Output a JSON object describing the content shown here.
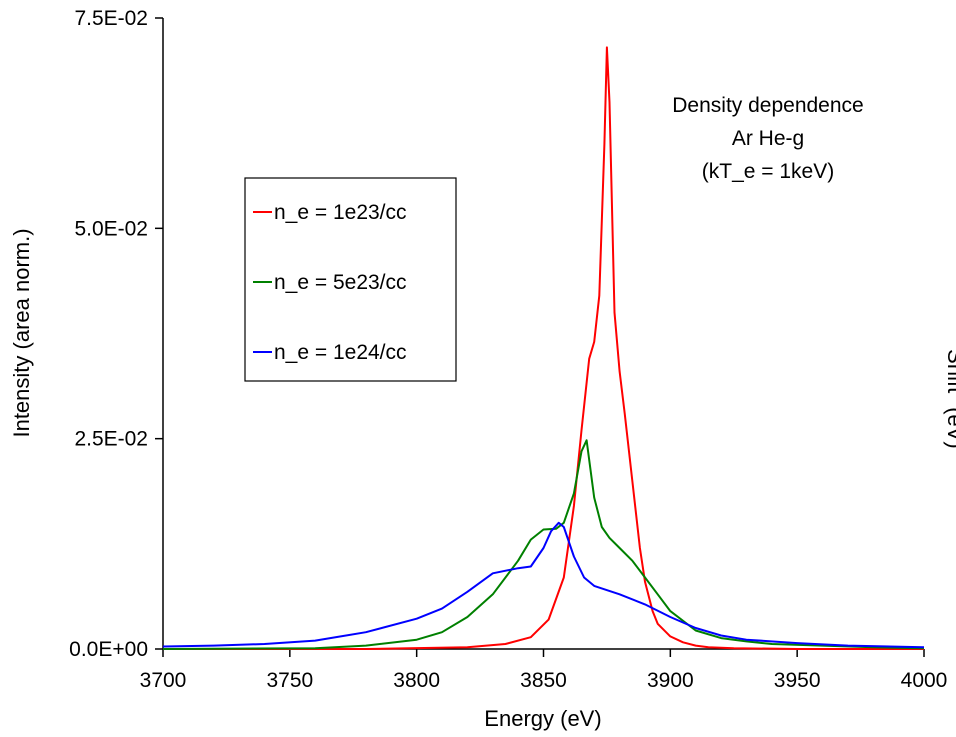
{
  "chart_data": {
    "type": "line",
    "xlabel": "Energy (eV)",
    "ylabel": "Intensity (area norm.)",
    "secondary_ylabel": "\"Shift\" (eV)",
    "xlim": [
      3700,
      4000
    ],
    "ylim": [
      0,
      0.075
    ],
    "x_ticks": [
      3700,
      3750,
      3800,
      3850,
      3900,
      3950,
      4000
    ],
    "x_tick_labels": [
      "3700",
      "3750",
      "3800",
      "3850",
      "3900",
      "3950",
      "4000"
    ],
    "y_ticks": [
      0,
      0.025,
      0.05,
      0.075
    ],
    "y_tick_labels": [
      "0.0E+00",
      "2.5E-02",
      "5.0E-02",
      "7.5E-02"
    ],
    "grid": false,
    "legend_position": "left",
    "annotation": [
      "Density dependence",
      "Ar He-g",
      "(kT_e = 1keV)"
    ],
    "series": [
      {
        "name": "n_e = 1e23/cc",
        "color": "#ff0000",
        "x": [
          3700,
          3780,
          3820,
          3835,
          3845,
          3852,
          3858,
          3862,
          3865,
          3868,
          3870,
          3872,
          3874,
          3875,
          3876,
          3878,
          3880,
          3882,
          3885,
          3888,
          3890,
          3893,
          3895,
          3900,
          3905,
          3910,
          3915,
          3925,
          3950,
          4000
        ],
        "y": [
          0.0,
          0.0,
          0.0002,
          0.0006,
          0.0014,
          0.0035,
          0.0085,
          0.017,
          0.026,
          0.0345,
          0.0365,
          0.042,
          0.06,
          0.0715,
          0.065,
          0.04,
          0.033,
          0.028,
          0.02,
          0.012,
          0.008,
          0.0045,
          0.003,
          0.0015,
          0.0008,
          0.0004,
          0.0002,
          0.0001,
          0.0,
          0.0
        ]
      },
      {
        "name": "n_e = 5e23/cc",
        "color": "#008000",
        "x": [
          3700,
          3760,
          3780,
          3800,
          3810,
          3820,
          3830,
          3840,
          3845,
          3850,
          3855,
          3858,
          3862,
          3865,
          3867,
          3870,
          3873,
          3876,
          3880,
          3885,
          3890,
          3895,
          3900,
          3910,
          3920,
          3930,
          3940,
          3960,
          3980,
          4000
        ],
        "y": [
          0.0,
          0.0001,
          0.0004,
          0.0011,
          0.002,
          0.0038,
          0.0065,
          0.0105,
          0.013,
          0.0142,
          0.0143,
          0.015,
          0.0185,
          0.0235,
          0.0248,
          0.018,
          0.0145,
          0.0132,
          0.012,
          0.0105,
          0.0085,
          0.0065,
          0.0045,
          0.0022,
          0.0013,
          0.0009,
          0.0006,
          0.0004,
          0.0002,
          0.0001
        ]
      },
      {
        "name": "n_e = 1e24/cc",
        "color": "#0000ff",
        "x": [
          3700,
          3720,
          3740,
          3760,
          3780,
          3800,
          3810,
          3820,
          3830,
          3840,
          3845,
          3850,
          3853,
          3856,
          3858,
          3862,
          3866,
          3870,
          3880,
          3890,
          3900,
          3910,
          3920,
          3930,
          3950,
          3970,
          4000
        ],
        "y": [
          0.0003,
          0.0004,
          0.0006,
          0.001,
          0.002,
          0.0036,
          0.0048,
          0.0068,
          0.009,
          0.0096,
          0.0098,
          0.012,
          0.014,
          0.015,
          0.0145,
          0.011,
          0.0085,
          0.0075,
          0.0065,
          0.0053,
          0.0038,
          0.0025,
          0.0016,
          0.0011,
          0.0007,
          0.0004,
          0.0002
        ]
      }
    ]
  }
}
